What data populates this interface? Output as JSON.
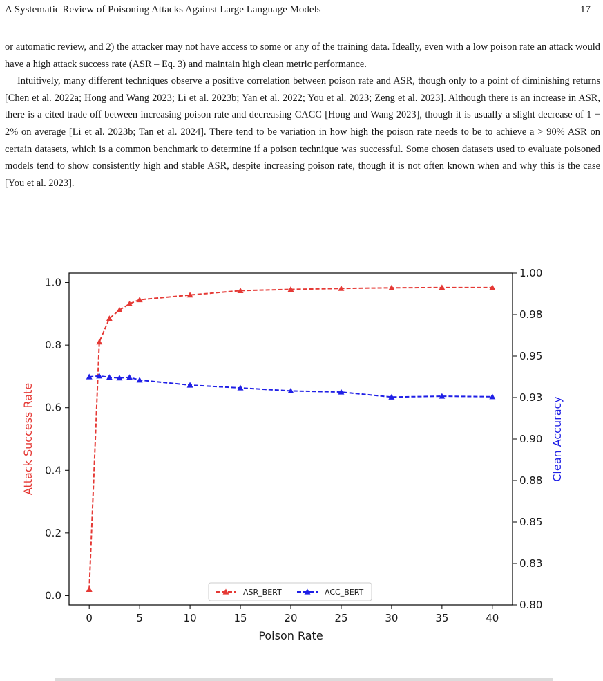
{
  "header": {
    "title": "A Systematic Review of Poisoning Attacks Against Large Language Models",
    "page_number": "17"
  },
  "body": {
    "p1": "or automatic review, and 2) the attacker may not have access to some or any of the training data. Ideally, even with a low poison rate an attack would have a high attack success rate (ASR – Eq. 3) and maintain high clean metric performance.",
    "p2": "Intuitively, many different techniques observe a positive correlation between poison rate and ASR, though only to a point of diminishing returns [Chen et al. 2022a; Hong and Wang 2023; Li et al. 2023b; Yan et al. 2022; You et al. 2023; Zeng et al. 2023]. Although there is an increase in ASR, there is a cited trade off between increasing poison rate and decreasing CACC [Hong and Wang 2023], though it is usually a slight decrease of 1 − 2% on average [Li et al. 2023b; Tan et al. 2024]. There tend to be variation in how high the poison rate needs to be to achieve a > 90% ASR on certain datasets, which is a common benchmark to determine if a poison technique was successful. Some chosen datasets used to evaluate poisoned models tend to show consistently high and stable ASR, despite increasing poison rate, though it is not often known when and why this is the case [You et al. 2023]."
  },
  "chart_data": {
    "type": "line",
    "x": [
      0,
      1,
      2,
      3,
      4,
      5,
      10,
      15,
      20,
      25,
      30,
      35,
      40
    ],
    "xlabel": "Poison Rate",
    "ylabel_left": "Attack Success Rate",
    "ylabel_right": "Clean Accuracy",
    "xlim": [
      -2,
      42
    ],
    "ylim_left": [
      -0.03,
      1.03
    ],
    "ylim_right": [
      0.8,
      1.0
    ],
    "xticks": [
      0,
      5,
      10,
      15,
      20,
      25,
      30,
      35,
      40
    ],
    "yticks_left": [
      0.0,
      0.2,
      0.4,
      0.6,
      0.8,
      1.0
    ],
    "yticks_right": [
      0.8,
      0.825,
      0.85,
      0.875,
      0.9,
      0.925,
      0.95,
      0.975,
      1.0
    ],
    "yticklabels_left": [
      "0.0",
      "0.2",
      "0.4",
      "0.6",
      "0.8",
      "1.0"
    ],
    "yticklabels_right": [
      "0.80",
      "0.83",
      "0.85",
      "0.88",
      "0.90",
      "0.93",
      "0.95",
      "0.98",
      "1.00"
    ],
    "grid": false,
    "legend": "lower-center",
    "series": [
      {
        "name": "ASR_BERT",
        "axis": "left",
        "color": "#e53935",
        "marker": "triangle",
        "linestyle": "dashed",
        "values": [
          0.02,
          0.81,
          0.885,
          0.912,
          0.932,
          0.945,
          0.96,
          0.974,
          0.978,
          0.981,
          0.983,
          0.984,
          0.984
        ]
      },
      {
        "name": "ACC_BERT",
        "axis": "right",
        "color": "#1f1fe6",
        "marker": "triangle",
        "linestyle": "dashed",
        "values": [
          0.9375,
          0.938,
          0.9372,
          0.9368,
          0.9372,
          0.9355,
          0.9325,
          0.9308,
          0.929,
          0.9283,
          0.9253,
          0.9258,
          0.9255
        ]
      }
    ]
  }
}
